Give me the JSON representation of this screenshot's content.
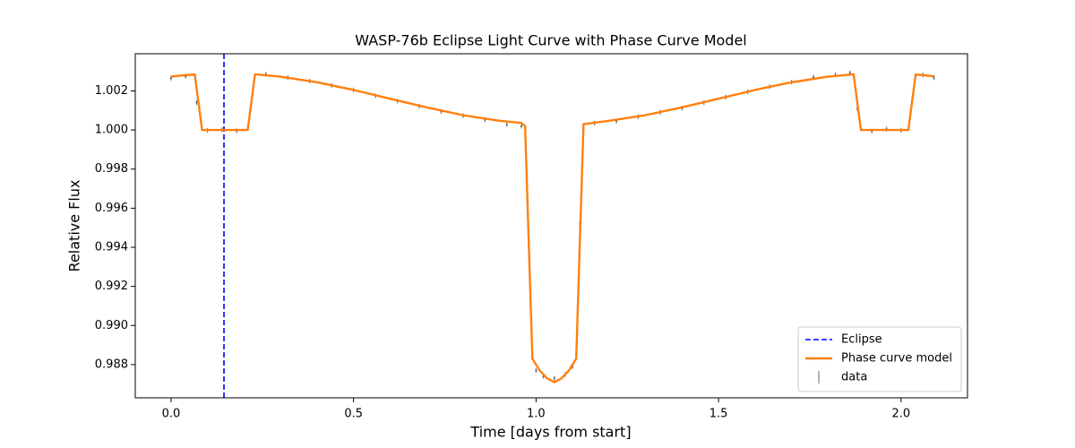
{
  "chart_data": {
    "type": "line",
    "title": "WASP-76b Eclipse Light Curve with Phase Curve Model",
    "xlabel": "Time [days from start]",
    "ylabel": "Relative Flux",
    "xlim": [
      -0.098,
      2.182
    ],
    "ylim": [
      0.9863,
      1.0039
    ],
    "xticks": [
      {
        "value": 0,
        "label": "0.0"
      },
      0.5,
      {
        "value": 1,
        "label": "1.0"
      },
      1.5,
      {
        "value": 2,
        "label": "2.0"
      }
    ],
    "yticks": [
      0.988,
      {
        "value": 0.99,
        "label": "0.990"
      },
      0.992,
      0.994,
      0.996,
      0.998,
      {
        "value": 1,
        "label": "1.000"
      },
      1.002
    ],
    "legend": "lower right",
    "series": [
      {
        "name": "Eclipse",
        "type": "vline",
        "color": "#0000ff",
        "dashed": true,
        "x": 0.145
      },
      {
        "name": "Phase curve model",
        "type": "line",
        "color": "#ff7f0e",
        "x": [
          0,
          0.03,
          0.065,
          0.085,
          0.21,
          0.23,
          0.3,
          0.4,
          0.5,
          0.6,
          0.7,
          0.8,
          0.9,
          0.96,
          0.97,
          0.99,
          1.01,
          1.03,
          1.05,
          1.07,
          1.09,
          1.11,
          1.13,
          1.2,
          1.3,
          1.4,
          1.5,
          1.6,
          1.7,
          1.8,
          1.87,
          1.89,
          2.02,
          2.04,
          2.09
        ],
        "values": [
          1.00273,
          1.00279,
          1.00284,
          1.0,
          1.0,
          1.00285,
          1.00273,
          1.00244,
          1.00205,
          1.0016,
          1.00116,
          1.00076,
          1.00047,
          1.00036,
          1.0002,
          0.9883,
          0.9877,
          0.9873,
          0.9871,
          0.9873,
          0.9877,
          0.9883,
          1.0003,
          1.00047,
          1.00076,
          1.00116,
          1.0016,
          1.00205,
          1.00244,
          1.00273,
          1.00285,
          1.0,
          1.0,
          1.00284,
          1.00275
        ]
      },
      {
        "name": "data",
        "type": "errorbar",
        "color": "#808080",
        "yerr": 0.00012,
        "x": [
          0,
          0.04,
          0.07,
          0.1,
          0.14,
          0.18,
          0.22,
          0.26,
          0.32,
          0.38,
          0.44,
          0.5,
          0.56,
          0.62,
          0.68,
          0.74,
          0.8,
          0.86,
          0.92,
          0.96,
          0.98,
          1,
          1.02,
          1.05,
          1.08,
          1.1,
          1.12,
          1.16,
          1.22,
          1.28,
          1.34,
          1.4,
          1.46,
          1.52,
          1.58,
          1.64,
          1.7,
          1.76,
          1.82,
          1.86,
          1.88,
          1.92,
          1.96,
          2,
          2.03,
          2.06,
          2.09
        ],
        "values": [
          1.00265,
          1.00275,
          1.0014,
          0.99998,
          1.00002,
          0.99996,
          1.0013,
          1.00285,
          1.00268,
          1.0025,
          1.00228,
          1.00205,
          1.00175,
          1.00148,
          1.00122,
          1.00095,
          1.00073,
          1.00052,
          1.00028,
          1.0002,
          0.9938,
          0.9877,
          0.9874,
          0.9873,
          0.9875,
          0.9879,
          0.9952,
          1.00035,
          1.00045,
          1.00068,
          1.0009,
          1.00112,
          1.0014,
          1.00168,
          1.00195,
          1.00222,
          1.00245,
          1.0027,
          1.00282,
          1.00292,
          1.0011,
          0.99995,
          1.00005,
          0.99998,
          1.0015,
          1.00282,
          1.00268
        ]
      }
    ]
  }
}
